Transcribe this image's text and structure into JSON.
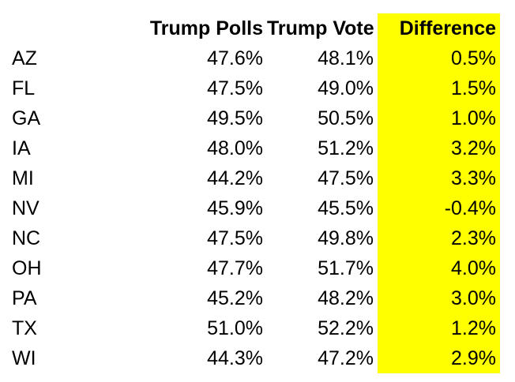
{
  "colors": {
    "highlight": "#FFFF00",
    "text": "#000000",
    "background": "#FFFFFF"
  },
  "table": {
    "columns": [
      "",
      "Trump Polls",
      "Trump Vote",
      "Difference"
    ],
    "rows": [
      {
        "state": "AZ",
        "polls": "47.6%",
        "vote": "48.1%",
        "diff": "0.5%"
      },
      {
        "state": "FL",
        "polls": "47.5%",
        "vote": "49.0%",
        "diff": "1.5%"
      },
      {
        "state": "GA",
        "polls": "49.5%",
        "vote": "50.5%",
        "diff": "1.0%"
      },
      {
        "state": "IA",
        "polls": "48.0%",
        "vote": "51.2%",
        "diff": "3.2%"
      },
      {
        "state": "MI",
        "polls": "44.2%",
        "vote": "47.5%",
        "diff": "3.3%"
      },
      {
        "state": "NV",
        "polls": "45.9%",
        "vote": "45.5%",
        "diff": "-0.4%"
      },
      {
        "state": "NC",
        "polls": "47.5%",
        "vote": "49.8%",
        "diff": "2.3%"
      },
      {
        "state": "OH",
        "polls": "47.7%",
        "vote": "51.7%",
        "diff": "4.0%"
      },
      {
        "state": "PA",
        "polls": "45.2%",
        "vote": "48.2%",
        "diff": "3.0%"
      },
      {
        "state": "TX",
        "polls": "51.0%",
        "vote": "52.2%",
        "diff": "1.2%"
      },
      {
        "state": "WI",
        "polls": "44.3%",
        "vote": "47.2%",
        "diff": "2.9%"
      }
    ]
  },
  "chart_data": {
    "type": "table",
    "title": "",
    "categories": [
      "AZ",
      "FL",
      "GA",
      "IA",
      "MI",
      "NV",
      "NC",
      "OH",
      "PA",
      "TX",
      "WI"
    ],
    "series": [
      {
        "name": "Trump Polls",
        "values": [
          47.6,
          47.5,
          49.5,
          48.0,
          44.2,
          45.9,
          47.5,
          47.7,
          45.2,
          51.0,
          44.3
        ]
      },
      {
        "name": "Trump Vote",
        "values": [
          48.1,
          49.0,
          50.5,
          51.2,
          47.5,
          45.5,
          49.8,
          51.7,
          48.2,
          52.2,
          47.2
        ]
      },
      {
        "name": "Difference",
        "values": [
          0.5,
          1.5,
          1.0,
          3.2,
          3.3,
          -0.4,
          2.3,
          4.0,
          3.0,
          1.2,
          2.9
        ]
      }
    ],
    "unit": "%",
    "highlight_column": "Difference"
  }
}
